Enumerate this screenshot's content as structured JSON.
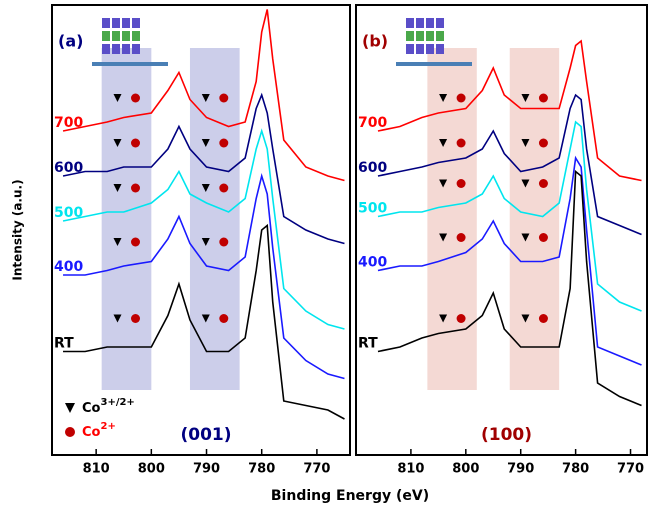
{
  "ylabel": "Intensity (a.u.)",
  "xlabel": "Binding Energy (eV)",
  "chart_data": [
    {
      "type": "line",
      "panel_label": "(a)",
      "panel_label_color": "#000080",
      "annotation": "(001)",
      "annotation_color": "#000080",
      "region_color": "#c3c6e6",
      "regions": [
        {
          "from": 809,
          "to": 800
        },
        {
          "from": 793,
          "to": 784
        }
      ],
      "xlim": [
        818,
        764
      ],
      "ylim": [
        0,
        100
      ],
      "xticks": [
        810,
        800,
        790,
        780,
        770
      ],
      "x": [
        816,
        812,
        808,
        805,
        800,
        797,
        795,
        793,
        790,
        786,
        783,
        781,
        780,
        779,
        778,
        776,
        772,
        768,
        765
      ],
      "series": [
        {
          "name": "700",
          "color": "#ff0000",
          "values": [
            72,
            73,
            74,
            75,
            76,
            81,
            85,
            79,
            75,
            73,
            74,
            83,
            94,
            99,
            88,
            70,
            64,
            62,
            61
          ]
        },
        {
          "name": "600",
          "color": "#000080",
          "values": [
            62,
            63,
            63,
            64,
            64,
            68,
            73,
            68,
            64,
            63,
            66,
            77,
            80,
            76,
            68,
            53,
            50,
            48,
            47
          ]
        },
        {
          "name": "500",
          "color": "#00e5ee",
          "values": [
            52,
            53,
            54,
            54,
            56,
            59,
            63,
            58,
            56,
            54,
            57,
            68,
            72,
            68,
            57,
            37,
            32,
            29,
            28
          ]
        },
        {
          "name": "400",
          "color": "#1a1aff",
          "values": [
            40,
            40,
            41,
            42,
            43,
            48,
            53,
            47,
            42,
            41,
            44,
            57,
            62,
            58,
            46,
            26,
            21,
            18,
            17
          ]
        },
        {
          "name": "RT",
          "color": "#000000",
          "values": [
            23,
            23,
            24,
            24,
            24,
            31,
            38,
            30,
            23,
            23,
            26,
            41,
            50,
            51,
            34,
            12,
            11,
            10,
            8
          ]
        }
      ],
      "legend_loc": "lower left",
      "legend": [
        {
          "marker": "triangle",
          "marker_color": "#000000",
          "label": "Co",
          "sup": "3+/2+",
          "label_color": "#000000"
        },
        {
          "marker": "circle",
          "marker_color": "#c00000",
          "label": "Co",
          "sup": "2+",
          "label_color": "#ff0000"
        }
      ]
    },
    {
      "type": "line",
      "panel_label": "(b)",
      "panel_label_color": "#a00000",
      "annotation": "(100)",
      "annotation_color": "#a00000",
      "region_color": "#f2d2cd",
      "regions": [
        {
          "from": 807,
          "to": 798
        },
        {
          "from": 792,
          "to": 783
        }
      ],
      "xlim": [
        820,
        767
      ],
      "ylim": [
        0,
        100
      ],
      "xticks": [
        810,
        800,
        790,
        780,
        770
      ],
      "x": [
        816,
        812,
        808,
        805,
        800,
        797,
        795,
        793,
        790,
        786,
        783,
        781,
        780,
        779,
        778,
        776,
        772,
        768
      ],
      "series": [
        {
          "name": "700",
          "color": "#ff0000",
          "values": [
            72,
            73,
            75,
            76,
            77,
            81,
            86,
            80,
            77,
            77,
            77,
            86,
            91,
            92,
            83,
            66,
            62,
            61
          ]
        },
        {
          "name": "600",
          "color": "#000080",
          "values": [
            62,
            63,
            64,
            65,
            66,
            68,
            72,
            67,
            63,
            64,
            66,
            77,
            80,
            79,
            68,
            53,
            51,
            49
          ]
        },
        {
          "name": "500",
          "color": "#00e5ee",
          "values": [
            53,
            54,
            54,
            55,
            56,
            58,
            62,
            57,
            54,
            53,
            56,
            68,
            74,
            73,
            59,
            38,
            34,
            32
          ]
        },
        {
          "name": "400",
          "color": "#1a1aff",
          "values": [
            41,
            42,
            42,
            43,
            45,
            48,
            52,
            47,
            43,
            43,
            44,
            57,
            66,
            64,
            50,
            24,
            22,
            20
          ]
        },
        {
          "name": "RT",
          "color": "#000000",
          "values": [
            23,
            24,
            26,
            27,
            28,
            31,
            36,
            28,
            24,
            24,
            24,
            37,
            63,
            62,
            43,
            16,
            13,
            11
          ]
        }
      ]
    }
  ]
}
